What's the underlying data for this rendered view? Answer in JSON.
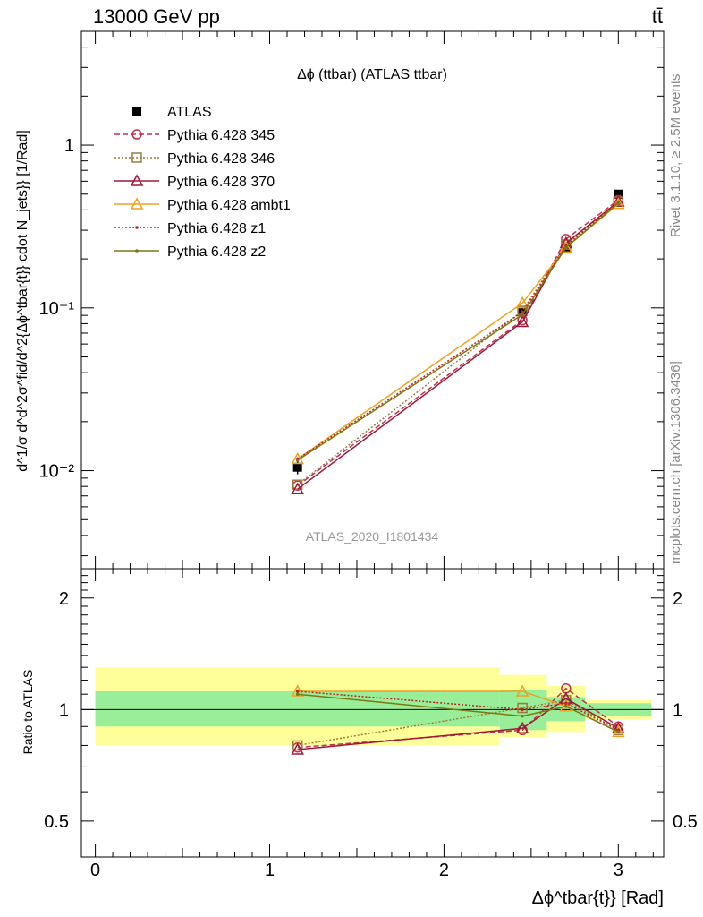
{
  "header": {
    "energy_label": "13000 GeV pp",
    "process_label": "tt̄",
    "rivet_label": "Rivet 3.1.10, ≥ 2.5M events",
    "mcplots_label": "mcplots.cern.ch [arXiv:1306.3436]"
  },
  "chart_data": [
    {
      "type": "line",
      "panel": "main",
      "title": "Δϕ (ttbar) (ATLAS ttbar)",
      "watermark": "ATLAS_2020_I1801434",
      "ylabel": "d^1/σ d^d^2σ^fid/d^2{Δϕ^tbar{t}} cdot N_jets}} [1/Rad]",
      "yscale": "log",
      "ylim": [
        0.0025,
        5
      ],
      "xlim": [
        -0.08,
        3.26
      ],
      "y_ticks": [
        {
          "value": 0.01,
          "label": "10⁻²"
        },
        {
          "value": 0.1,
          "label": "10⁻¹"
        },
        {
          "value": 1,
          "label": "1"
        }
      ],
      "legend_position": "top-left",
      "x": [
        1.16,
        2.45,
        2.7,
        3.0
      ],
      "series": [
        {
          "name": "ATLAS",
          "style": "data",
          "color": "#000000",
          "marker": "square-filled",
          "values": [
            0.0105,
            0.095,
            0.23,
            0.5
          ],
          "errors": [
            0.001,
            0.006,
            0.012,
            0.02
          ]
        },
        {
          "name": "Pythia 6.428 345",
          "style": "dashed",
          "color": "#c03050",
          "marker": "circle-open",
          "values": [
            0.0081,
            0.084,
            0.265,
            0.46
          ]
        },
        {
          "name": "Pythia 6.428 346",
          "style": "dotted",
          "color": "#9a7a3a",
          "marker": "square-open",
          "values": [
            0.0082,
            0.096,
            0.245,
            0.45
          ]
        },
        {
          "name": "Pythia 6.428 370",
          "style": "solid",
          "color": "#a01838",
          "marker": "triangle-open",
          "values": [
            0.0077,
            0.082,
            0.25,
            0.45
          ]
        },
        {
          "name": "Pythia 6.428 ambt1",
          "style": "solid",
          "color": "#f0a020",
          "marker": "triangle-open",
          "values": [
            0.0118,
            0.107,
            0.235,
            0.435
          ]
        },
        {
          "name": "Pythia 6.428 z1",
          "style": "dotted",
          "color": "#c02020",
          "marker": "dot",
          "values": [
            0.0118,
            0.094,
            0.24,
            0.445
          ]
        },
        {
          "name": "Pythia 6.428 z2",
          "style": "solid",
          "color": "#7a7a10",
          "marker": "dot",
          "values": [
            0.0116,
            0.091,
            0.235,
            0.44
          ]
        }
      ]
    },
    {
      "type": "line",
      "panel": "ratio",
      "xlabel": "Δϕ^tbar{t}} [Rad]",
      "ylabel": "Ratio to ATLAS",
      "yscale": "log",
      "ylim": [
        0.4,
        2.4
      ],
      "xlim": [
        -0.08,
        3.26
      ],
      "x_ticks": [
        0,
        1,
        2,
        3
      ],
      "y_ticks": [
        0.5,
        1,
        2
      ],
      "x": [
        1.16,
        2.45,
        2.7,
        3.0
      ],
      "bands": [
        {
          "x_from": 0.0,
          "x_to": 2.32,
          "inner": [
            0.9,
            1.12
          ],
          "outer": [
            0.8,
            1.3
          ]
        },
        {
          "x_from": 2.32,
          "x_to": 2.59,
          "inner": [
            0.88,
            1.13
          ],
          "outer": [
            0.84,
            1.24
          ]
        },
        {
          "x_from": 2.59,
          "x_to": 2.81,
          "inner": [
            0.93,
            1.08
          ],
          "outer": [
            0.87,
            1.16
          ]
        },
        {
          "x_from": 2.81,
          "x_to": 3.19,
          "inner": [
            0.96,
            1.04
          ],
          "outer": [
            0.94,
            1.06
          ]
        }
      ],
      "series": [
        {
          "name": "Pythia 6.428 345",
          "values": [
            0.79,
            0.88,
            1.14,
            0.9
          ]
        },
        {
          "name": "Pythia 6.428 346",
          "values": [
            0.8,
            1.01,
            1.06,
            0.88
          ]
        },
        {
          "name": "Pythia 6.428 370",
          "values": [
            0.78,
            0.89,
            1.07,
            0.89
          ]
        },
        {
          "name": "Pythia 6.428 ambt1",
          "values": [
            1.12,
            1.12,
            1.02,
            0.87
          ]
        },
        {
          "name": "Pythia 6.428 z1",
          "values": [
            1.12,
            1.0,
            1.04,
            0.88
          ]
        },
        {
          "name": "Pythia 6.428 z2",
          "values": [
            1.1,
            0.96,
            1.02,
            0.87
          ]
        }
      ]
    }
  ]
}
